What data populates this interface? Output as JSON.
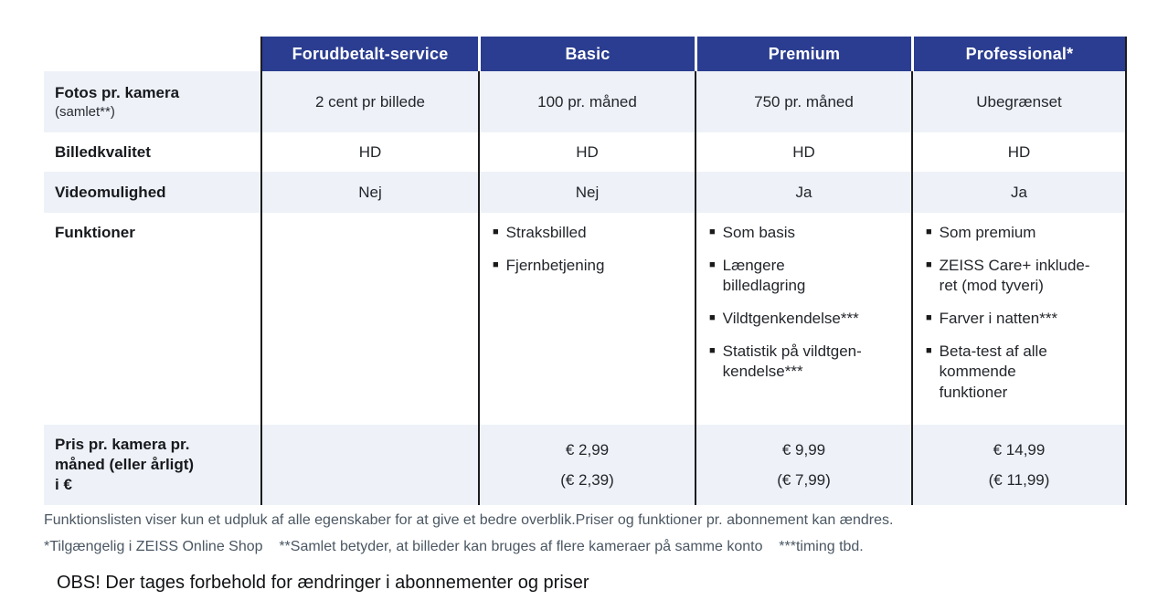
{
  "colors": {
    "header_blue": "#2b3d90",
    "row_stripe": "#eef2f8",
    "grid_line": "#1c1c1f",
    "footnote_gray": "#4b5763"
  },
  "icons": {
    "bullet": "■"
  },
  "table": {
    "column_headers": [
      "Forudbetalt-service",
      "Basic",
      "Premium",
      "Professional*"
    ],
    "rows": {
      "fotos": {
        "label": "Fotos pr. kamera",
        "sublabel": "(samlet**)",
        "values": [
          "2 cent pr billede",
          "100 pr. måned",
          "750 pr. måned",
          "Ubegrænset"
        ]
      },
      "billedkvalitet": {
        "label": "Billedkvalitet",
        "values": [
          "HD",
          "HD",
          "HD",
          "HD"
        ]
      },
      "videomulighed": {
        "label": "Videomulighed",
        "values": [
          "Nej",
          "Nej",
          "Ja",
          "Ja"
        ]
      },
      "funktioner": {
        "label": "Funktioner",
        "basic": [
          "Straksbilled",
          "Fjernbetjening"
        ],
        "premium": [
          "Som basis",
          "Længere\nbilledlagring",
          "Vildtgenkendelse***",
          "Statistik på vildtgen-\nkendelse***"
        ],
        "professional": [
          "Som premium",
          "ZEISS Care+ inklude-\nret (mod tyveri)",
          "Farver i natten***",
          "Beta-test af alle\nkommende\nfunktioner"
        ]
      },
      "pris": {
        "label": "Pris pr. kamera pr.\nmåned (eller årligt)\ni €",
        "basic": {
          "monthly": "€ 2,99",
          "yearly": "(€ 2,39)"
        },
        "premium": {
          "monthly": "€ 9,99",
          "yearly": "(€ 7,99)"
        },
        "professional": {
          "monthly": "€ 14,99",
          "yearly": "(€ 11,99)"
        }
      }
    }
  },
  "footnotes": {
    "line1": "Funktionslisten viser kun et udpluk af alle egenskaber for at give et bedre overblik.Priser og funktioner pr. abonnement kan ændres.",
    "line2": "*Tilgængelig i ZEISS Online Shop    **Samlet betyder, at billeder kan bruges af flere kameraer på samme konto    ***timing tbd.",
    "obs": "OBS! Der tages forbehold for ændringer i abonnementer og priser"
  }
}
